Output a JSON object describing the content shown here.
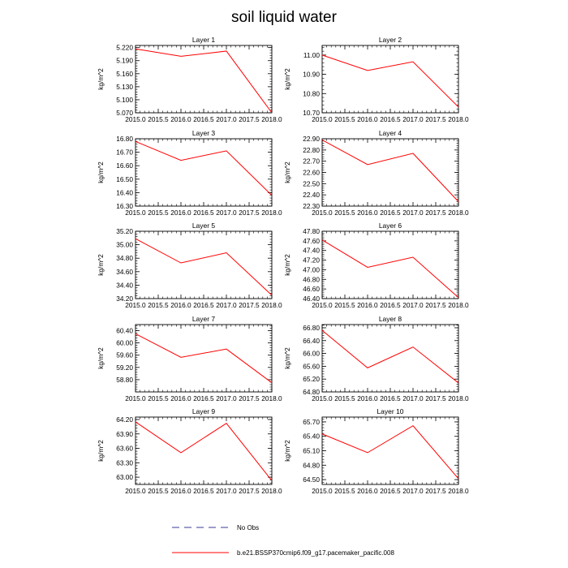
{
  "title": "soil liquid water",
  "colors": {
    "model_line": "#ff0000",
    "obs_line": "#3a3a9a",
    "axis": "#000000"
  },
  "legend": {
    "obs_label": "No Obs",
    "model_label": "b.e21.BSSP370cmip6.f09_g17.pacemaker_pacific.008"
  },
  "chart_data": [
    {
      "type": "line",
      "title": "Layer 1",
      "ylabel": "kg/m^2",
      "x": [
        2015,
        2016,
        2017,
        2018
      ],
      "values": [
        5.217,
        5.2,
        5.212,
        5.07
      ],
      "xlim": [
        2015,
        2018
      ],
      "ylim": [
        5.07,
        5.225
      ],
      "yticks": [
        "5.220",
        "5.190",
        "5.160",
        "5.130",
        "5.100",
        "5.070"
      ],
      "xticks": [
        "2015.0",
        "2015.5",
        "2016.0",
        "2016.5",
        "2017.0",
        "2017.5",
        "2018.0"
      ]
    },
    {
      "type": "line",
      "title": "Layer 2",
      "ylabel": "kg/m^2",
      "x": [
        2015,
        2016,
        2017,
        2018
      ],
      "values": [
        11.0,
        10.92,
        10.965,
        10.73
      ],
      "xlim": [
        2015,
        2018
      ],
      "ylim": [
        10.7,
        11.05
      ],
      "yticks": [
        "11.00",
        "10.90",
        "10.80",
        "10.70"
      ],
      "xticks": [
        "2015.0",
        "2015.5",
        "2016.0",
        "2016.5",
        "2017.0",
        "2017.5",
        "2018.0"
      ]
    },
    {
      "type": "line",
      "title": "Layer 3",
      "ylabel": "kg/m^2",
      "x": [
        2015,
        2016,
        2017,
        2018
      ],
      "values": [
        16.78,
        16.64,
        16.71,
        16.38
      ],
      "xlim": [
        2015,
        2018
      ],
      "ylim": [
        16.3,
        16.8
      ],
      "yticks": [
        "16.80",
        "16.70",
        "16.60",
        "16.50",
        "16.40",
        "16.30"
      ],
      "xticks": [
        "2015.0",
        "2015.5",
        "2016.0",
        "2016.5",
        "2017.0",
        "2017.5",
        "2018.0"
      ]
    },
    {
      "type": "line",
      "title": "Layer 4",
      "ylabel": "kg/m^2",
      "x": [
        2015,
        2016,
        2017,
        2018
      ],
      "values": [
        22.89,
        22.67,
        22.77,
        22.34
      ],
      "xlim": [
        2015,
        2018
      ],
      "ylim": [
        22.3,
        22.9
      ],
      "yticks": [
        "22.90",
        "22.80",
        "22.70",
        "22.60",
        "22.50",
        "22.40",
        "22.30"
      ],
      "xticks": [
        "2015.0",
        "2015.5",
        "2016.0",
        "2016.5",
        "2017.0",
        "2017.5",
        "2018.0"
      ]
    },
    {
      "type": "line",
      "title": "Layer 5",
      "ylabel": "kg/m^2",
      "x": [
        2015,
        2016,
        2017,
        2018
      ],
      "values": [
        35.09,
        34.73,
        34.88,
        34.25
      ],
      "xlim": [
        2015,
        2018
      ],
      "ylim": [
        34.2,
        35.2
      ],
      "yticks": [
        "35.20",
        "35.00",
        "34.80",
        "34.60",
        "34.40",
        "34.20"
      ],
      "xticks": [
        "2015.0",
        "2015.5",
        "2016.0",
        "2016.5",
        "2017.0",
        "2017.5",
        "2018.0"
      ]
    },
    {
      "type": "line",
      "title": "Layer 6",
      "ylabel": "kg/m^2",
      "x": [
        2015,
        2016,
        2017,
        2018
      ],
      "values": [
        47.62,
        47.05,
        47.26,
        46.42
      ],
      "xlim": [
        2015,
        2018
      ],
      "ylim": [
        46.4,
        47.8
      ],
      "yticks": [
        "47.80",
        "47.60",
        "47.40",
        "47.20",
        "47.00",
        "46.80",
        "46.60",
        "46.40"
      ],
      "xticks": [
        "2015.0",
        "2015.5",
        "2016.0",
        "2016.5",
        "2017.0",
        "2017.5",
        "2018.0"
      ]
    },
    {
      "type": "line",
      "title": "Layer 7",
      "ylabel": "kg/m^2",
      "x": [
        2015,
        2016,
        2017,
        2018
      ],
      "values": [
        60.3,
        59.53,
        59.8,
        58.7
      ],
      "xlim": [
        2015,
        2018
      ],
      "ylim": [
        58.4,
        60.6
      ],
      "yticks": [
        "60.40",
        "60.00",
        "59.60",
        "59.20",
        "58.80"
      ],
      "xticks": [
        "2015.0",
        "2015.5",
        "2016.0",
        "2016.5",
        "2017.0",
        "2017.5",
        "2018.0"
      ]
    },
    {
      "type": "line",
      "title": "Layer 8",
      "ylabel": "kg/m^2",
      "x": [
        2015,
        2016,
        2017,
        2018
      ],
      "values": [
        66.72,
        65.55,
        66.2,
        65.08
      ],
      "xlim": [
        2015,
        2018
      ],
      "ylim": [
        64.8,
        66.9
      ],
      "yticks": [
        "66.80",
        "66.40",
        "66.00",
        "65.60",
        "65.20",
        "64.80"
      ],
      "xticks": [
        "2015.0",
        "2015.5",
        "2016.0",
        "2016.5",
        "2017.0",
        "2017.5",
        "2018.0"
      ]
    },
    {
      "type": "line",
      "title": "Layer 9",
      "ylabel": "kg/m^2",
      "x": [
        2015,
        2016,
        2017,
        2018
      ],
      "values": [
        64.15,
        63.51,
        64.12,
        62.93
      ],
      "xlim": [
        2015,
        2018
      ],
      "ylim": [
        62.85,
        64.25
      ],
      "yticks": [
        "64.20",
        "63.90",
        "63.60",
        "63.30",
        "63.00"
      ],
      "xticks": [
        "2015.0",
        "2015.5",
        "2016.0",
        "2016.5",
        "2017.0",
        "2017.5",
        "2018.0"
      ]
    },
    {
      "type": "line",
      "title": "Layer 10",
      "ylabel": "kg/m^2",
      "x": [
        2015,
        2016,
        2017,
        2018
      ],
      "values": [
        65.45,
        65.06,
        65.62,
        64.52
      ],
      "xlim": [
        2015,
        2018
      ],
      "ylim": [
        64.4,
        65.8
      ],
      "yticks": [
        "65.70",
        "65.40",
        "65.10",
        "64.80",
        "64.50"
      ],
      "xticks": [
        "2015.0",
        "2015.5",
        "2016.0",
        "2016.5",
        "2017.0",
        "2017.5",
        "2018.0"
      ]
    }
  ]
}
